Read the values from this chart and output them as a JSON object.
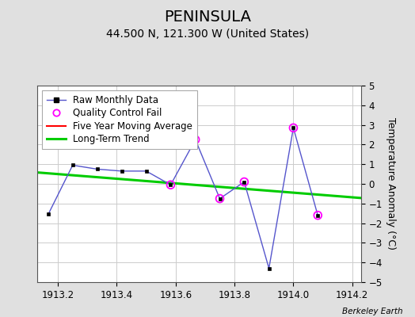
{
  "title": "PENINSULA",
  "subtitle": "44.500 N, 121.300 W (United States)",
  "ylabel": "Temperature Anomaly (°C)",
  "xlim": [
    1913.13,
    1914.23
  ],
  "ylim": [
    -5,
    5
  ],
  "xticks": [
    1913.2,
    1913.4,
    1913.6,
    1913.8,
    1914.0,
    1914.2
  ],
  "yticks": [
    -5,
    -4,
    -3,
    -2,
    -1,
    0,
    1,
    2,
    3,
    4,
    5
  ],
  "raw_x": [
    1913.167,
    1913.25,
    1913.333,
    1913.417,
    1913.5,
    1913.583,
    1913.667,
    1913.75,
    1913.833,
    1913.917,
    1914.0,
    1914.083
  ],
  "raw_y": [
    -1.55,
    0.95,
    0.75,
    0.65,
    0.65,
    -0.05,
    2.25,
    -0.75,
    0.1,
    -4.3,
    2.85,
    -1.6
  ],
  "qc_fail_x": [
    1913.583,
    1913.667,
    1913.75,
    1913.833,
    1914.0,
    1914.083
  ],
  "qc_fail_y": [
    -0.05,
    2.25,
    -0.75,
    0.1,
    2.85,
    -1.6
  ],
  "trend_x": [
    1913.13,
    1914.23
  ],
  "trend_y": [
    0.58,
    -0.72
  ],
  "background_color": "#e0e0e0",
  "plot_bg_color": "#ffffff",
  "raw_line_color": "#5555cc",
  "raw_marker_color": "#000000",
  "qc_color": "#ff00ff",
  "trend_color": "#00cc00",
  "mavg_color": "#ff0000",
  "watermark": "Berkeley Earth",
  "title_fontsize": 14,
  "subtitle_fontsize": 10,
  "label_fontsize": 9,
  "tick_fontsize": 8.5,
  "legend_fontsize": 8.5
}
